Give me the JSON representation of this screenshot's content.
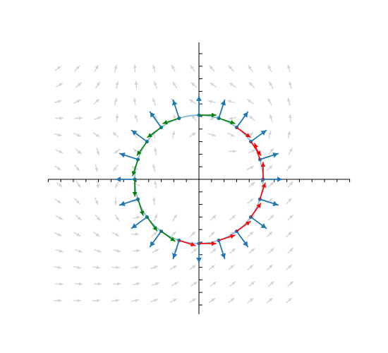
{
  "chart_data": {
    "type": "vector-field",
    "description_free": true,
    "grid": false,
    "xlim": [
      -4,
      4
    ],
    "ylim": [
      -4,
      4
    ],
    "circle": {
      "center": [
        0,
        0
      ],
      "radius": 1.7
    },
    "boundary_points": 20,
    "colors": {
      "axis": "#000000",
      "circle": "#8ab8d8",
      "normal": "#1f77b4",
      "background_field": "#d3d3d3",
      "tangent_inward": "#008000",
      "tangent_outward": "#ff0000"
    }
  }
}
